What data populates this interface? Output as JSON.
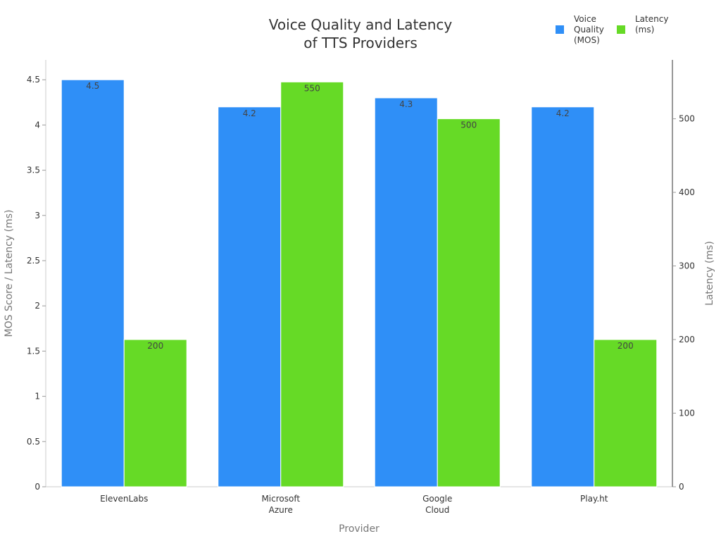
{
  "chart_data": {
    "type": "bar",
    "title": [
      "Voice Quality and Latency",
      "of TTS Providers"
    ],
    "xlabel": "Provider",
    "ylabel": "MOS Score / Latency (ms)",
    "y2label": "Latency (ms)",
    "categories": [
      [
        "ElevenLabs"
      ],
      [
        "Microsoft",
        "Azure"
      ],
      [
        "Google",
        "Cloud"
      ],
      [
        "Play.ht"
      ]
    ],
    "series": [
      {
        "name": [
          "Voice",
          "Quality",
          "(MOS)"
        ],
        "axis": "left",
        "color": "#2f8ff7",
        "values": [
          4.5,
          4.2,
          4.3,
          4.2
        ],
        "labels": [
          "4.5",
          "4.2",
          "4.3",
          "4.2"
        ]
      },
      {
        "name": [
          "Latency",
          "(ms)"
        ],
        "axis": "right",
        "color": "#66da26",
        "values": [
          200,
          550,
          500,
          200
        ],
        "labels": [
          "200",
          "550",
          "500",
          "200"
        ]
      }
    ],
    "ylim": [
      0,
      4.72
    ],
    "y2lim": [
      0,
      580
    ],
    "yticks": [
      "0",
      "0.5",
      "1",
      "1.5",
      "2",
      "2.5",
      "3",
      "3.5",
      "4",
      "4.5"
    ],
    "y2ticks": [
      "0",
      "100",
      "200",
      "300",
      "400",
      "500"
    ],
    "legend_position": "top-right",
    "grid": false
  }
}
